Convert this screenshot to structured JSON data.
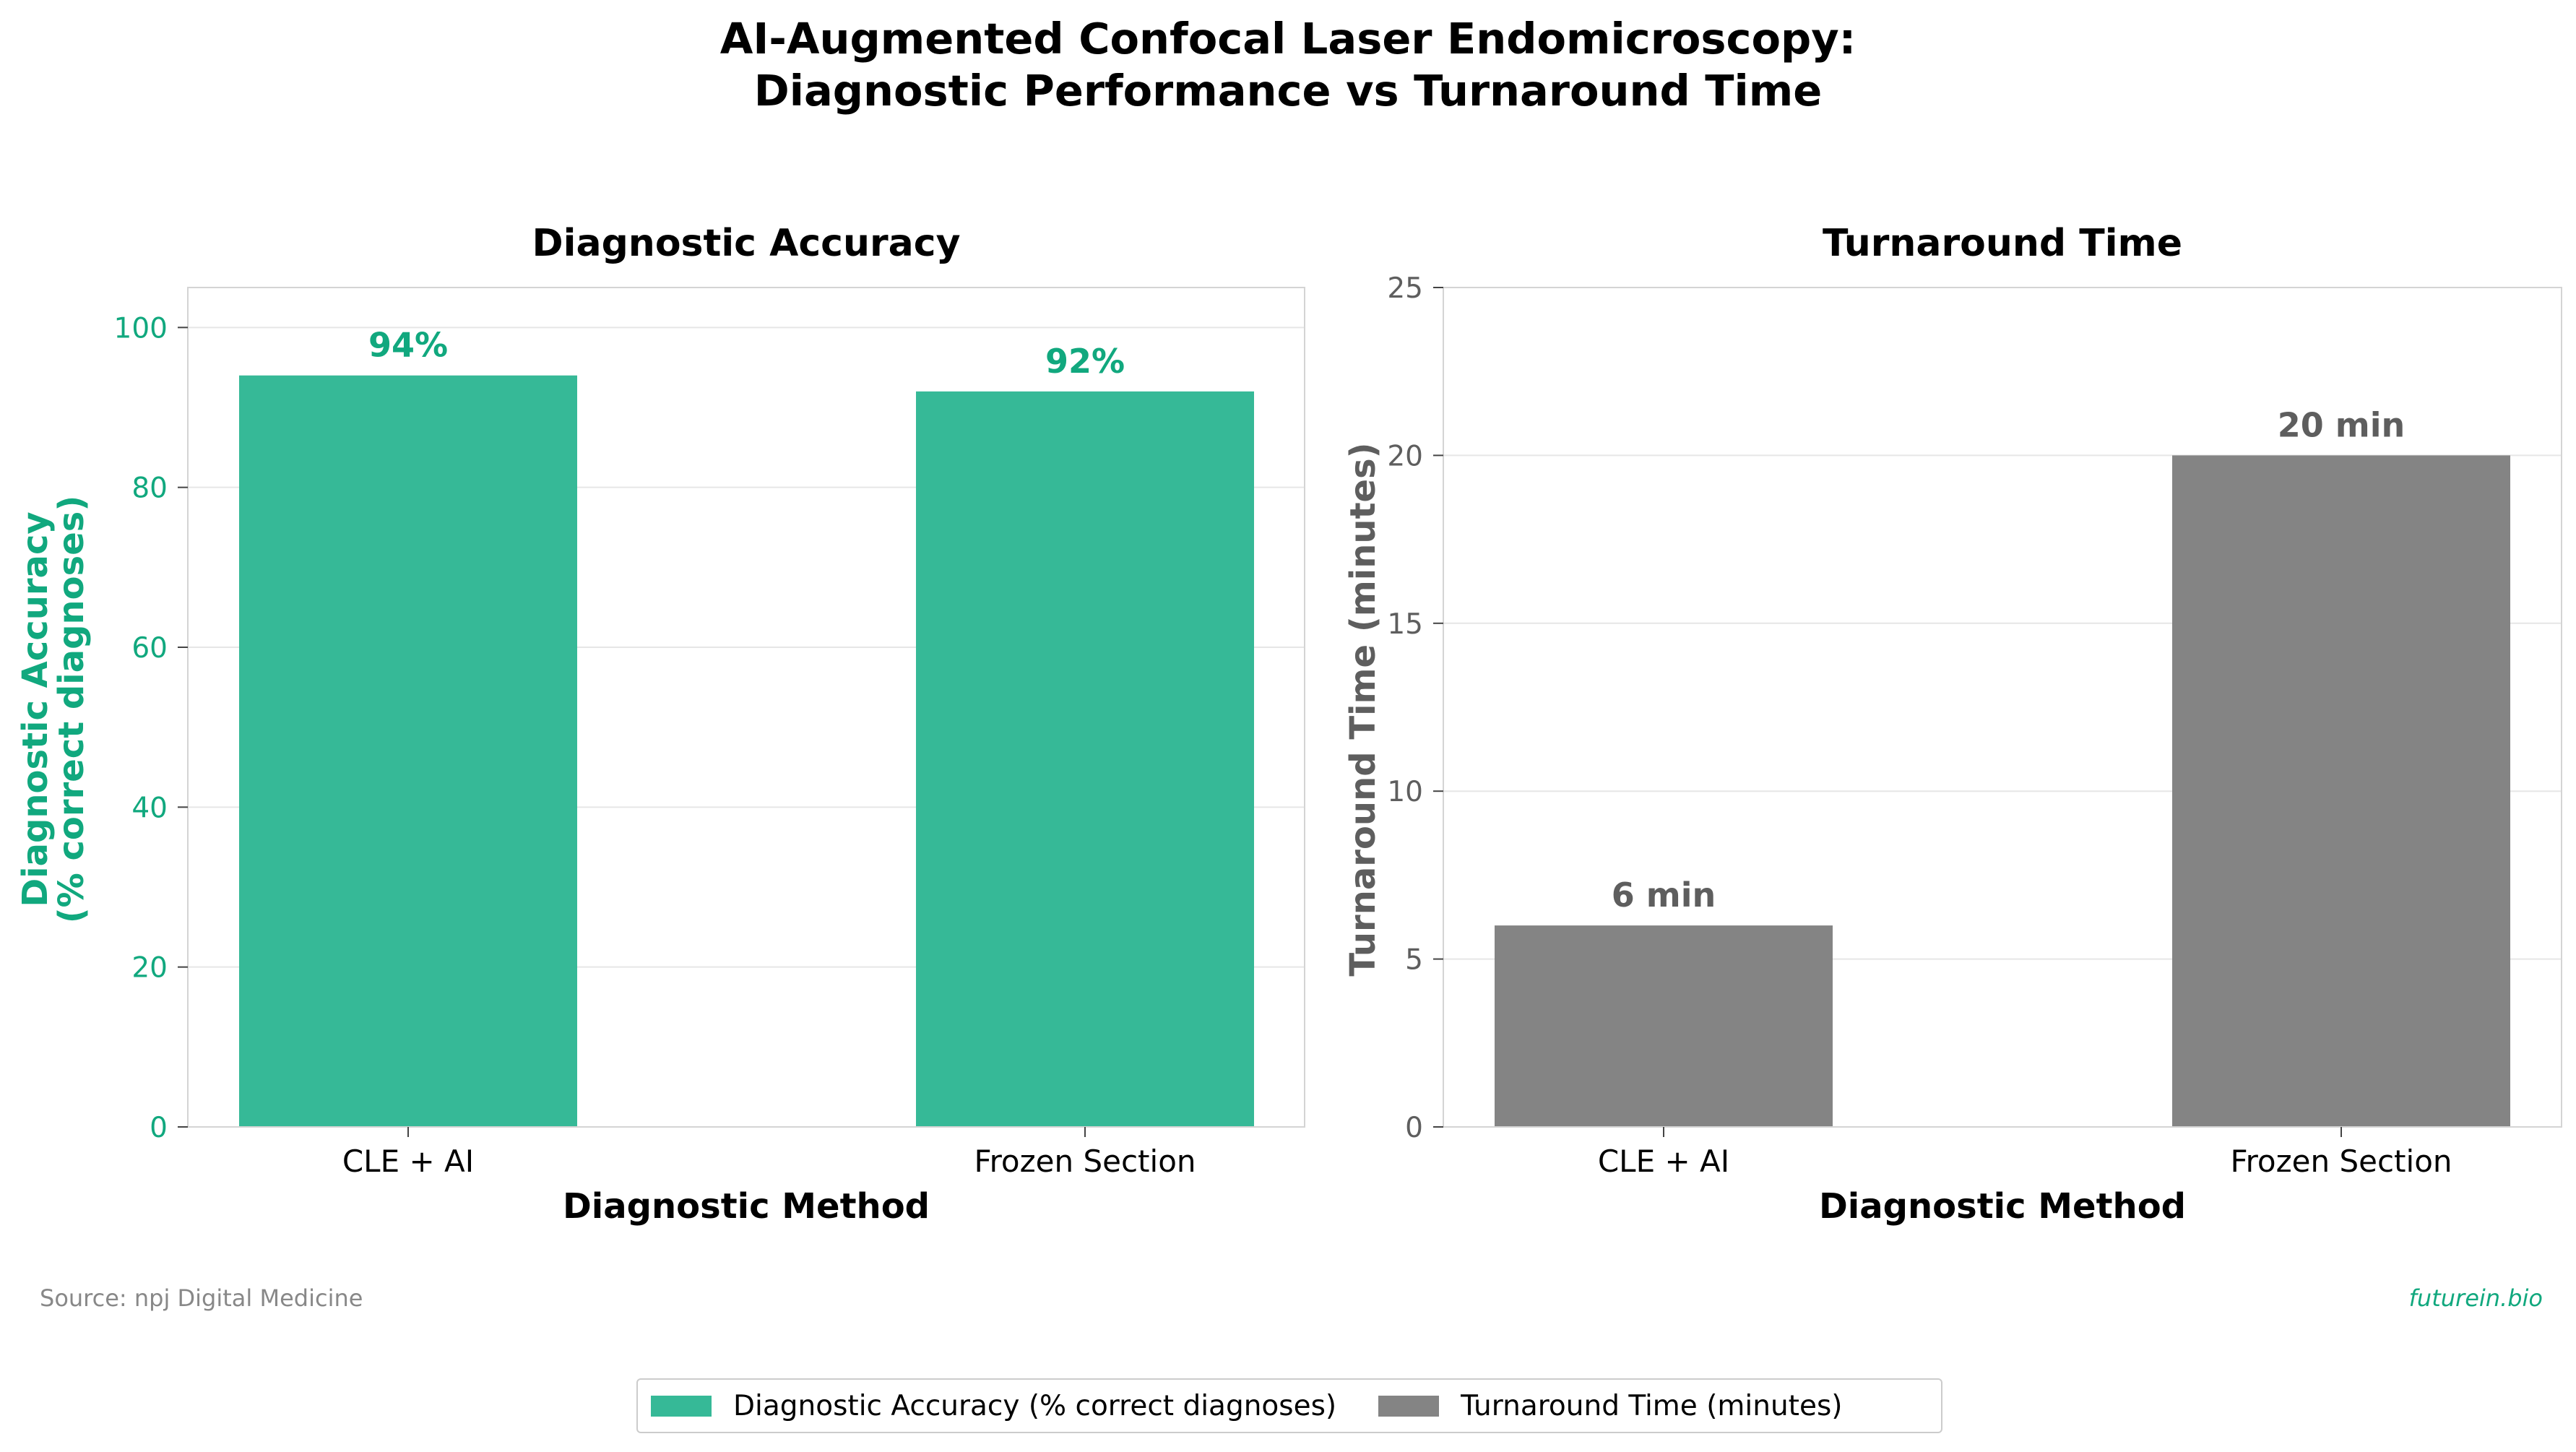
{
  "title_lines": [
    "AI-Augmented Confocal Laser Endomicroscopy:",
    "Diagnostic Performance vs Turnaround Time"
  ],
  "colors": {
    "accuracy": "#36b997",
    "accuracy_text": "#11a87e",
    "time": "#848484",
    "time_text": "#5e5e5e"
  },
  "chart_data": [
    {
      "type": "bar",
      "title": "Diagnostic Accuracy",
      "categories": [
        "CLE + AI",
        "Frozen Section"
      ],
      "values": [
        94,
        92
      ],
      "data_labels": [
        "94%",
        "92%"
      ],
      "xlabel": "Diagnostic Method",
      "ylabel_lines": [
        "Diagnostic Accuracy",
        "(% correct diagnoses)"
      ],
      "ylim": [
        0,
        105
      ],
      "yticks": [
        0,
        20,
        40,
        60,
        80,
        100
      ],
      "grid": true,
      "color_key": "accuracy"
    },
    {
      "type": "bar",
      "title": "Turnaround Time",
      "categories": [
        "CLE + AI",
        "Frozen Section"
      ],
      "values": [
        6,
        20
      ],
      "data_labels": [
        "6 min",
        "20 min"
      ],
      "xlabel": "Diagnostic Method",
      "ylabel_lines": [
        "Turnaround Time (minutes)"
      ],
      "ylim": [
        0,
        25
      ],
      "yticks": [
        0,
        5,
        10,
        15,
        20,
        25
      ],
      "grid": true,
      "color_key": "time"
    }
  ],
  "legend": {
    "placement": "bottom-center",
    "items": [
      {
        "label": "Diagnostic Accuracy (% correct diagnoses)",
        "color_key": "accuracy"
      },
      {
        "label": "Turnaround Time (minutes)",
        "color_key": "time"
      }
    ]
  },
  "source": "Source: npj Digital Medicine",
  "brand": "futurein.bio"
}
